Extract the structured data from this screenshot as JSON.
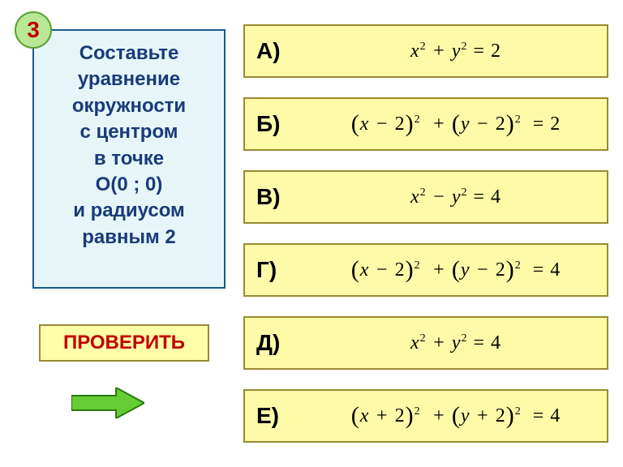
{
  "badge": {
    "number": "3",
    "bg": "#b8e896",
    "border": "#5aa030",
    "text_color": "#c00000"
  },
  "question": {
    "lines": [
      "Составьте",
      "уравнение",
      "окружности",
      "с центром",
      "в точке",
      "О(0 ; 0)",
      "и радиусом",
      "равным 2"
    ],
    "bg": "#e6f6f8",
    "border": "#1a5a8a",
    "text_color": "#1a3a7a",
    "font_size": 24
  },
  "check_button": {
    "label": "ПРОВЕРИТЬ",
    "bg": "#ffffa8",
    "border": "#9a8a30",
    "text_color": "#c00000"
  },
  "arrow": {
    "fill": "#66cc33",
    "stroke": "#2a7a10"
  },
  "options_style": {
    "bg": "#fffaa8",
    "border": "#9a8a30",
    "letter_color": "#000000",
    "formula_color": "#000000",
    "font_size": 24
  },
  "options": [
    {
      "letter": "А)",
      "formula_html": "<i>x</i><sup>2</sup> + <i>y</i><sup>2</sup> <span class='n'>= 2</span>"
    },
    {
      "letter": "Б)",
      "formula_html": "<span class='paren'>(</span><i>x</i> − <span class='n'>2</span><span class='paren'>)</span><sup>2</sup> &nbsp;+ <span class='paren'>(</span><i>y</i> − <span class='n'>2</span><span class='paren'>)</span><sup>2</sup> &nbsp;<span class='n'>= 2</span>"
    },
    {
      "letter": "В)",
      "formula_html": "<i>x</i><sup>2</sup> − <i>y</i><sup>2</sup> <span class='n'>= 4</span>"
    },
    {
      "letter": "Г)",
      "formula_html": "<span class='paren'>(</span><i>x</i> − <span class='n'>2</span><span class='paren'>)</span><sup>2</sup> &nbsp;+ <span class='paren'>(</span><i>y</i> − <span class='n'>2</span><span class='paren'>)</span><sup>2</sup> &nbsp;<span class='n'>= 4</span>"
    },
    {
      "letter": "Д)",
      "formula_html": "<i>x</i><sup>2</sup> + <i>y</i><sup>2</sup> <span class='n'>= 4</span>"
    },
    {
      "letter": "Е)",
      "formula_html": "<span class='paren'>(</span><i>x</i> + <span class='n'>2</span><span class='paren'>)</span><sup>2</sup> &nbsp;+ <span class='paren'>(</span><i>y</i> + <span class='n'>2</span><span class='paren'>)</span><sup>2</sup> &nbsp;<span class='n'>= 4</span>"
    }
  ]
}
